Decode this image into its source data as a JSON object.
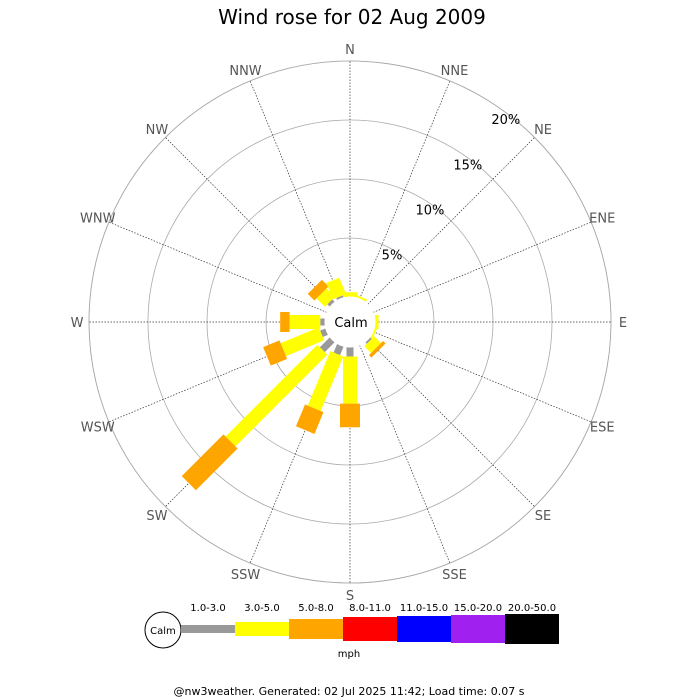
{
  "chart_data": {
    "type": "wind-rose",
    "title": "Wind rose for 02 Aug 2009",
    "directions": [
      "N",
      "NNE",
      "NE",
      "ENE",
      "E",
      "ESE",
      "SE",
      "SSE",
      "S",
      "SSW",
      "SW",
      "WSW",
      "W",
      "WNW",
      "NW",
      "NNW"
    ],
    "rings_percent": [
      5,
      10,
      15,
      20
    ],
    "ring_labels": [
      "5%",
      "10%",
      "15%",
      "20%"
    ],
    "max_percent": 22,
    "calm_label": "Calm",
    "speed_unit": "mph",
    "speed_bins": [
      {
        "label": "1.0-3.0",
        "color": "#999999"
      },
      {
        "label": "3.0-5.0",
        "color": "#ffff00"
      },
      {
        "label": "5.0-8.0",
        "color": "#ffa500"
      },
      {
        "label": "8.0-11.0",
        "color": "#ff0000"
      },
      {
        "label": "11.0-15.0",
        "color": "#0000ff"
      },
      {
        "label": "15.0-20.0",
        "color": "#a020f0"
      },
      {
        "label": "20.0-50.0",
        "color": "#000000"
      }
    ],
    "series_percent_by_direction": {
      "N": [
        0.0,
        0.4,
        0.0,
        0,
        0,
        0,
        0
      ],
      "NNE": [
        0.0,
        0.2,
        0.0,
        0,
        0,
        0,
        0
      ],
      "NE": [
        0,
        0,
        0,
        0,
        0,
        0,
        0
      ],
      "ENE": [
        0,
        0,
        0,
        0,
        0,
        0,
        0
      ],
      "E": [
        0.0,
        0.3,
        0.0,
        0,
        0,
        0,
        0
      ],
      "ESE": [
        0.0,
        0.2,
        0.0,
        0,
        0,
        0,
        0
      ],
      "SE": [
        0.2,
        0.8,
        0.3,
        0,
        0,
        0,
        0
      ],
      "SSE": [
        0,
        0,
        0,
        0,
        0,
        0,
        0
      ],
      "S": [
        0.8,
        4.0,
        2.0,
        0,
        0,
        0,
        0
      ],
      "SSW": [
        0.8,
        5.0,
        2.0,
        0,
        0,
        0,
        0
      ],
      "SW": [
        1.2,
        11.0,
        5.0,
        0,
        0,
        0,
        0
      ],
      "WSW": [
        0.5,
        3.5,
        1.5,
        0,
        0,
        0,
        0
      ],
      "W": [
        0.4,
        2.6,
        0.8,
        0,
        0,
        0,
        0
      ],
      "WNW": [
        0,
        0,
        0,
        0,
        0,
        0,
        0
      ],
      "NW": [
        0.3,
        1.0,
        0.8,
        0,
        0,
        0,
        0
      ],
      "NNW": [
        0.2,
        1.5,
        0.0,
        0,
        0,
        0,
        0
      ]
    }
  },
  "footer": "@nw3weather. Generated: 02 Jul 2025 11:42; Load time: 0.07 s"
}
